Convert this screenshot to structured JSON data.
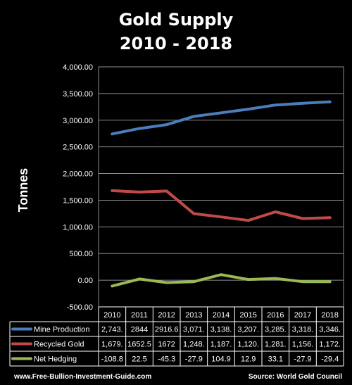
{
  "chart_data": {
    "type": "line",
    "title": "Gold Supply",
    "subtitle": "2010 - 2018",
    "ylabel": "Tonnes",
    "xlabel": "",
    "ylim": [
      -500,
      4000
    ],
    "yticks": [
      "4,000.00",
      "3,500.00",
      "3,000.00",
      "2,500.00",
      "2,000.00",
      "1,500.00",
      "1,000.00",
      "500.00",
      "0.00",
      "-500.00"
    ],
    "ytick_values": [
      4000,
      3500,
      3000,
      2500,
      2000,
      1500,
      1000,
      500,
      0,
      -500
    ],
    "categories": [
      "2010",
      "2011",
      "2012",
      "2013",
      "2014",
      "2015",
      "2016",
      "2017",
      "2018"
    ],
    "grid": true,
    "legend": "data-table",
    "series": [
      {
        "name": "Mine Production",
        "color": "#4a7ebb",
        "values": [
          2743,
          2844,
          2916.6,
          3071,
          3138,
          3207,
          3285,
          3318,
          3346
        ],
        "labels": [
          "2,743.",
          "2844",
          "2916.6",
          "3,071.",
          "3,138.",
          "3,207.",
          "3,285.",
          "3,318.",
          "3,346."
        ]
      },
      {
        "name": "Recycled Gold",
        "color": "#be4b48",
        "values": [
          1679,
          1652.5,
          1672,
          1248,
          1187,
          1120,
          1281,
          1156,
          1172
        ],
        "labels": [
          "1,679.",
          "1652.5",
          "1672",
          "1,248.",
          "1,187.",
          "1,120.",
          "1,281.",
          "1,156.",
          "1,172."
        ]
      },
      {
        "name": "Net Hedging",
        "color": "#98b954",
        "values": [
          -108.8,
          22.5,
          -45.3,
          -27.9,
          104.9,
          12.9,
          33.1,
          -27.9,
          -29.4
        ],
        "labels": [
          "-108.8",
          "22.5",
          "-45.3",
          "-27.9",
          "104.9",
          "12.9",
          "33.1",
          "-27.9",
          "-29.4"
        ]
      }
    ]
  },
  "footer": {
    "left": "www.Free-Bullion-Investment-Guide.com",
    "right": "Source: World Gold Council"
  }
}
